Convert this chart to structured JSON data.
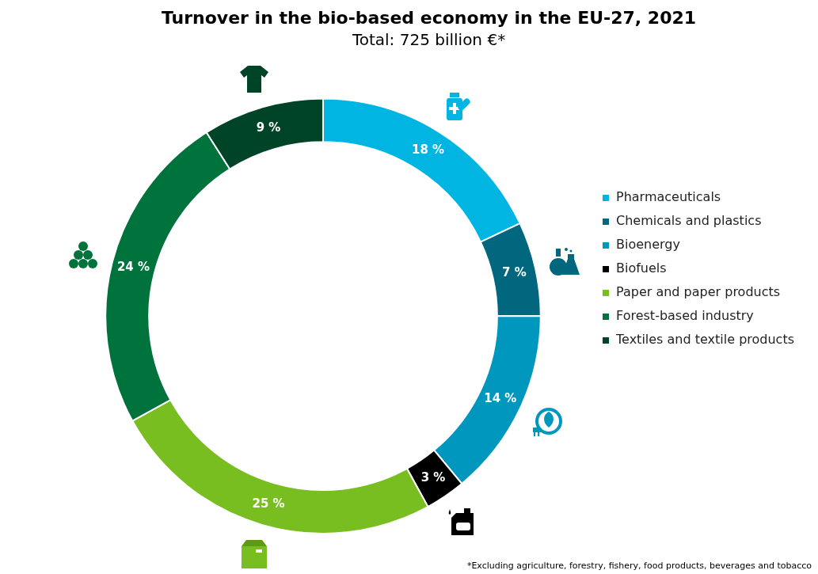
{
  "chart_data": {
    "type": "donut",
    "title": "Turnover in the bio-based economy in the EU-27, 2021",
    "subtitle": "Total: 725 billion €*",
    "categories": [
      "Pharmaceuticals",
      "Chemicals and plastics",
      "Bioenergy",
      "Biofuels",
      "Paper and paper products",
      "Forest-based industry",
      "Textiles and textile products"
    ],
    "values": [
      18,
      7,
      14,
      3,
      25,
      24,
      9
    ],
    "colors": [
      "#00b5e2",
      "#00677f",
      "#0097bf",
      "#000000",
      "#78be20",
      "#00733d",
      "#004428"
    ],
    "value_labels": [
      "18 %",
      "7 %",
      "14 %",
      "3 %",
      "25 %",
      "24 %",
      "9 %"
    ],
    "legend": "right",
    "annotations": [
      "*Excluding agriculture, forestry, fishery, food products, beverages and tobacco"
    ]
  }
}
